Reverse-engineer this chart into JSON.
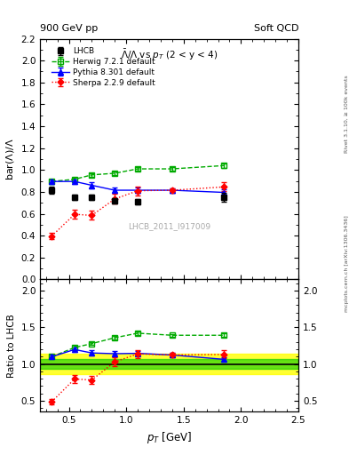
{
  "title_top": "900 GeV pp",
  "title_top_right": "Soft QCD",
  "plot_title": "$\\bar{\\Lambda}/\\Lambda$ vs $p_T$ (2 < y < 4)",
  "watermark": "LHCB_2011_I917009",
  "right_label_top": "Rivet 3.1.10, ≥ 100k events",
  "right_label_bot": "mcplots.cern.ch [arXiv:1306.3436]",
  "xlabel": "$p_T$ [GeV]",
  "ylabel_main": "bar($\\Lambda$)/$\\Lambda$",
  "ylabel_ratio": "Ratio to LHCB",
  "xlim": [
    0.25,
    2.5
  ],
  "ylim_main": [
    0.0,
    2.2
  ],
  "ylim_ratio": [
    0.35,
    2.15
  ],
  "lhcb_x": [
    0.35,
    0.55,
    0.7,
    0.9,
    1.1,
    1.85
  ],
  "lhcb_y": [
    0.815,
    0.748,
    0.748,
    0.715,
    0.712,
    0.748
  ],
  "lhcb_yerr": [
    0.03,
    0.025,
    0.025,
    0.025,
    0.025,
    0.04
  ],
  "herwig_x": [
    0.35,
    0.55,
    0.7,
    0.9,
    1.1,
    1.4,
    1.85
  ],
  "herwig_y": [
    0.895,
    0.915,
    0.955,
    0.97,
    1.01,
    1.01,
    1.04
  ],
  "herwig_yerr": [
    0.02,
    0.015,
    0.015,
    0.015,
    0.02,
    0.015,
    0.02
  ],
  "pythia_x": [
    0.35,
    0.55,
    0.7,
    0.9,
    1.1,
    1.4,
    1.85
  ],
  "pythia_y": [
    0.895,
    0.895,
    0.86,
    0.815,
    0.815,
    0.815,
    0.795
  ],
  "pythia_yerr": [
    0.02,
    0.02,
    0.025,
    0.025,
    0.025,
    0.02,
    0.025
  ],
  "sherpa_x": [
    0.35,
    0.55,
    0.7,
    0.9,
    1.1,
    1.4,
    1.85
  ],
  "sherpa_y": [
    0.395,
    0.595,
    0.585,
    0.735,
    0.81,
    0.815,
    0.845
  ],
  "sherpa_yerr": [
    0.03,
    0.04,
    0.04,
    0.045,
    0.04,
    0.02,
    0.04
  ],
  "herwig_color": "#00aa00",
  "pythia_color": "#0000ff",
  "sherpa_color": "#ff0000",
  "lhcb_color": "#000000",
  "band_green_lo": 0.93,
  "band_green_hi": 1.07,
  "band_yellow_lo": 0.86,
  "band_yellow_hi": 1.14
}
